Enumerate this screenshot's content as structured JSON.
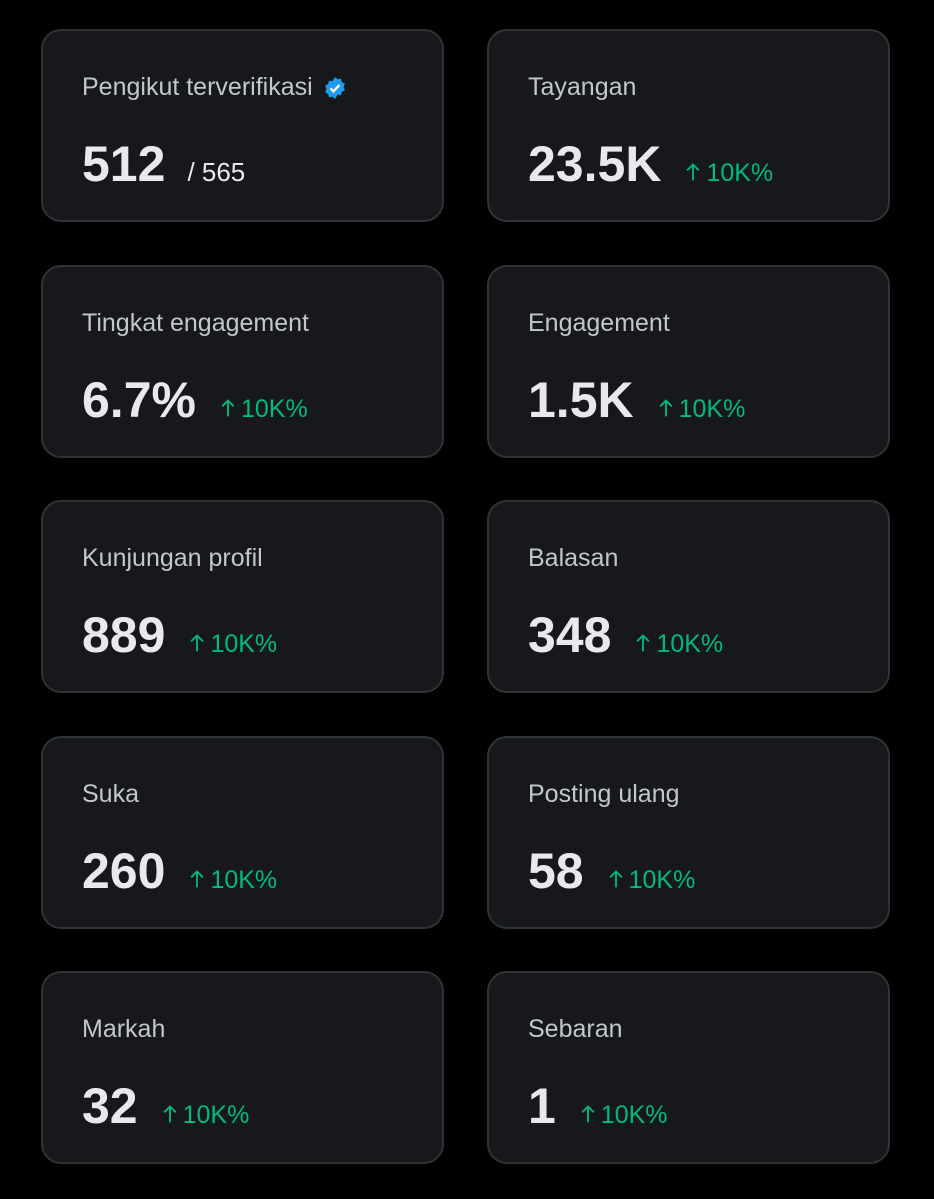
{
  "cards": [
    {
      "label": "Pengikut terverifikasi",
      "verified": true,
      "value": "512",
      "total": "/ 565"
    },
    {
      "label": "Tayangan",
      "value": "23.5K",
      "change": "10K%"
    },
    {
      "label": "Tingkat engagement",
      "value": "6.7%",
      "change": "10K%"
    },
    {
      "label": "Engagement",
      "value": "1.5K",
      "change": "10K%"
    },
    {
      "label": "Kunjungan profil",
      "value": "889",
      "change": "10K%"
    },
    {
      "label": "Balasan",
      "value": "348",
      "change": "10K%"
    },
    {
      "label": "Suka",
      "value": "260",
      "change": "10K%"
    },
    {
      "label": "Posting ulang",
      "value": "58",
      "change": "10K%"
    },
    {
      "label": "Markah",
      "value": "32",
      "change": "10K%"
    },
    {
      "label": "Sebaran",
      "value": "1",
      "change": "10K%"
    }
  ]
}
